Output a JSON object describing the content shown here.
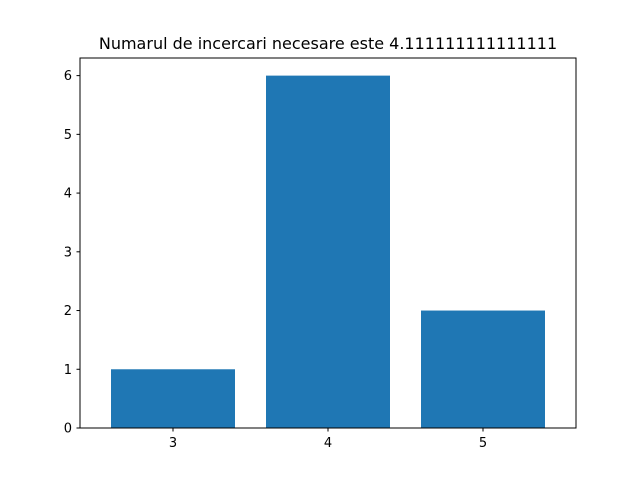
{
  "chart_data": {
    "type": "bar",
    "title": "Numarul de incercari necesare este 4.111111111111111",
    "xlabel": "",
    "ylabel": "",
    "categories": [
      "3",
      "4",
      "5"
    ],
    "values": [
      1,
      6,
      2
    ],
    "ylim": [
      0,
      6.3
    ],
    "yticks": [
      0,
      1,
      2,
      3,
      4,
      5,
      6
    ],
    "bar_color": "#1f77b4",
    "grid": false,
    "legend": "none"
  }
}
